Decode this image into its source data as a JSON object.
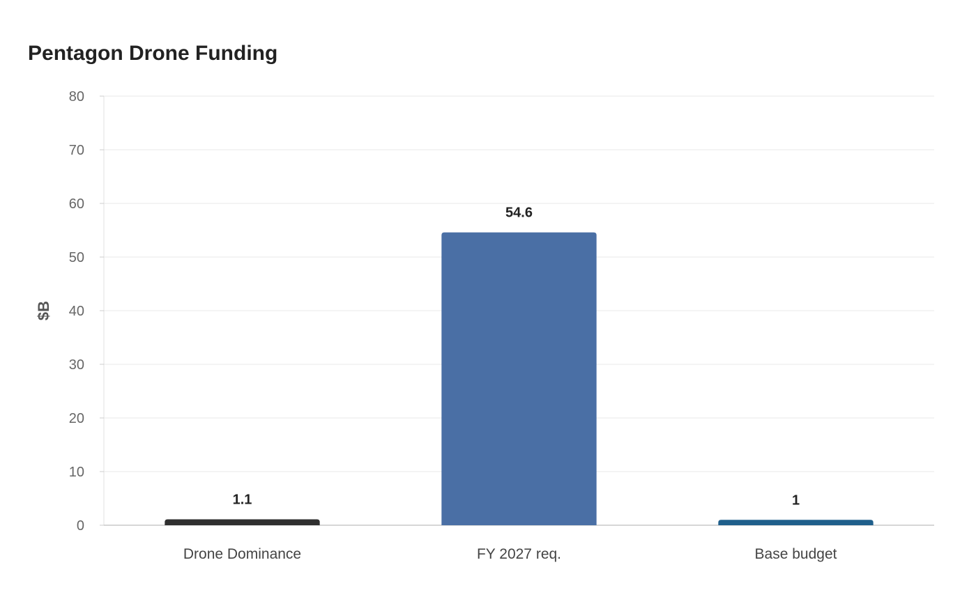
{
  "chart_data": {
    "type": "bar",
    "title": "Pentagon Drone Funding",
    "xlabel": "",
    "ylabel": "$B",
    "categories": [
      "Drone Dominance",
      "FY 2027 req.",
      "Base budget"
    ],
    "values": [
      1.1,
      54.6,
      1
    ],
    "value_labels": [
      "1.1",
      "54.6",
      "1"
    ],
    "colors": [
      "#2f2f2f",
      "#4a6fa5",
      "#1f5f8b"
    ],
    "ylim": [
      0,
      80
    ],
    "yticks": [
      0,
      10,
      20,
      30,
      40,
      50,
      60,
      70,
      80
    ],
    "grid": true,
    "legend": "none"
  }
}
